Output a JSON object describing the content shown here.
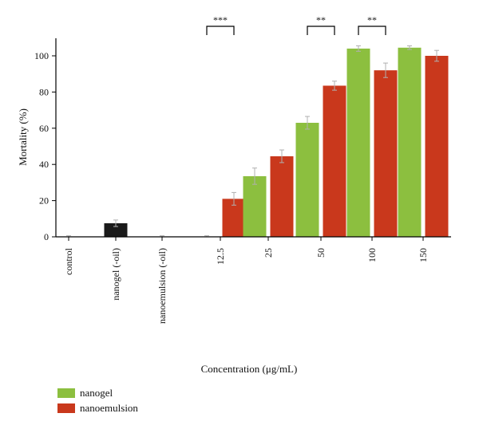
{
  "chart_data": {
    "type": "bar",
    "xlabel": "Concentration (μg/mL)",
    "ylabel": "Mortality (%)",
    "ylim": [
      0,
      110
    ],
    "yticks": [
      0,
      20,
      40,
      60,
      80,
      100
    ],
    "grid": false,
    "legend_position": "bottom-left",
    "categories": [
      "control",
      "nanogel (-oil)",
      "nanoemulsion (-oil)",
      "12.5",
      "25",
      "50",
      "100",
      "150"
    ],
    "series": [
      {
        "name": "nanogel",
        "color": "#8cbf3f",
        "values": [
          0,
          7.5,
          0,
          0,
          33.5,
          63,
          104,
          104.5
        ],
        "errors": [
          0.6,
          1.8,
          0.6,
          0.6,
          4.5,
          3.5,
          1.5,
          1.0
        ]
      },
      {
        "name": "nanoemulsion",
        "color": "#c9381c",
        "values": [
          null,
          null,
          null,
          21,
          44.5,
          83.5,
          92,
          100
        ],
        "errors": [
          null,
          null,
          null,
          3.5,
          3.5,
          2.5,
          4.0,
          3.0
        ]
      }
    ],
    "control_color": "#1a1a1a",
    "significance": [
      {
        "category": "12.5",
        "label": "***"
      },
      {
        "category": "50",
        "label": "**"
      },
      {
        "category": "100",
        "label": "**"
      }
    ]
  }
}
